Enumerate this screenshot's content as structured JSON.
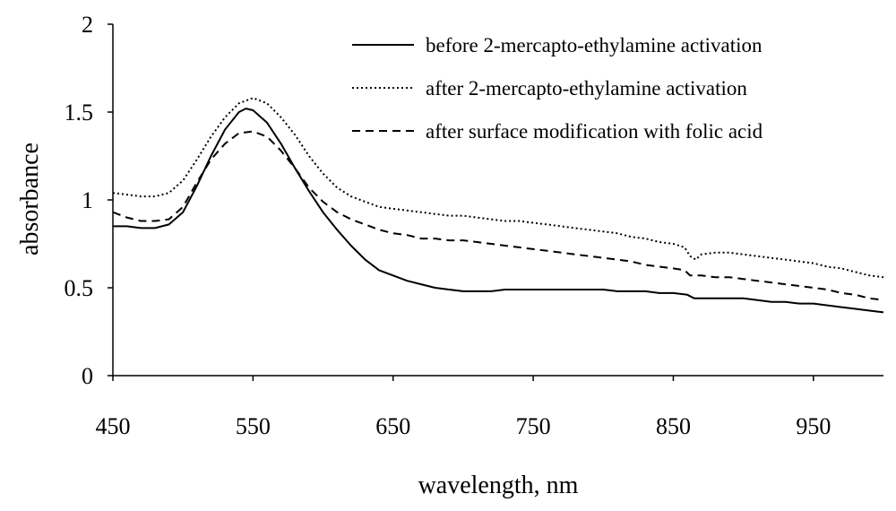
{
  "chart_data": {
    "type": "line",
    "title": "",
    "xlabel": "wavelength, nm",
    "ylabel": "absorbance",
    "xlim": [
      450,
      1000
    ],
    "ylim": [
      0,
      2
    ],
    "xticks": [
      450,
      550,
      650,
      750,
      850,
      950
    ],
    "yticks": [
      0,
      0.5,
      1,
      1.5,
      2
    ],
    "ytick_labels": [
      "0",
      "0.5",
      "1",
      "1.5",
      "2"
    ],
    "grid": false,
    "legend_position": "top-right",
    "series": [
      {
        "name": "before 2-mercapto-ethylamine activation",
        "style": "solid",
        "x": [
          450,
          460,
          470,
          480,
          490,
          500,
          510,
          520,
          530,
          540,
          545,
          550,
          560,
          570,
          580,
          590,
          600,
          610,
          620,
          630,
          640,
          650,
          660,
          670,
          680,
          690,
          700,
          710,
          720,
          730,
          740,
          750,
          760,
          770,
          780,
          790,
          800,
          810,
          820,
          830,
          840,
          850,
          860,
          865,
          870,
          880,
          890,
          900,
          910,
          920,
          930,
          940,
          950,
          960,
          970,
          980,
          990,
          1000
        ],
        "values": [
          0.85,
          0.85,
          0.84,
          0.84,
          0.86,
          0.93,
          1.08,
          1.25,
          1.4,
          1.5,
          1.52,
          1.51,
          1.44,
          1.32,
          1.18,
          1.05,
          0.93,
          0.83,
          0.74,
          0.66,
          0.6,
          0.57,
          0.54,
          0.52,
          0.5,
          0.49,
          0.48,
          0.48,
          0.48,
          0.49,
          0.49,
          0.49,
          0.49,
          0.49,
          0.49,
          0.49,
          0.49,
          0.48,
          0.48,
          0.48,
          0.47,
          0.47,
          0.46,
          0.44,
          0.44,
          0.44,
          0.44,
          0.44,
          0.43,
          0.42,
          0.42,
          0.41,
          0.41,
          0.4,
          0.39,
          0.38,
          0.37,
          0.36
        ]
      },
      {
        "name": "after 2-mercapto-ethylamine activation",
        "style": "dotted",
        "x": [
          450,
          460,
          470,
          480,
          490,
          500,
          510,
          520,
          530,
          540,
          550,
          560,
          570,
          580,
          590,
          600,
          610,
          620,
          630,
          640,
          650,
          660,
          670,
          680,
          690,
          700,
          710,
          720,
          730,
          740,
          750,
          760,
          770,
          780,
          790,
          800,
          810,
          820,
          830,
          840,
          850,
          858,
          862,
          866,
          870,
          880,
          890,
          900,
          910,
          920,
          930,
          940,
          950,
          960,
          970,
          980,
          990,
          1000
        ],
        "values": [
          1.04,
          1.03,
          1.02,
          1.02,
          1.04,
          1.11,
          1.23,
          1.36,
          1.47,
          1.55,
          1.58,
          1.55,
          1.47,
          1.37,
          1.25,
          1.15,
          1.07,
          1.02,
          0.99,
          0.96,
          0.95,
          0.94,
          0.93,
          0.92,
          0.91,
          0.91,
          0.9,
          0.89,
          0.88,
          0.88,
          0.87,
          0.86,
          0.85,
          0.84,
          0.83,
          0.82,
          0.81,
          0.79,
          0.78,
          0.76,
          0.75,
          0.73,
          0.68,
          0.66,
          0.69,
          0.7,
          0.7,
          0.69,
          0.68,
          0.67,
          0.66,
          0.65,
          0.64,
          0.62,
          0.61,
          0.59,
          0.57,
          0.56
        ]
      },
      {
        "name": "after surface modification with folic acid",
        "style": "dashed",
        "x": [
          450,
          460,
          470,
          480,
          490,
          500,
          510,
          520,
          530,
          540,
          550,
          560,
          570,
          580,
          590,
          600,
          610,
          620,
          630,
          640,
          650,
          660,
          670,
          680,
          690,
          700,
          710,
          720,
          730,
          740,
          750,
          760,
          770,
          780,
          790,
          800,
          810,
          820,
          830,
          840,
          850,
          858,
          862,
          870,
          880,
          890,
          900,
          910,
          920,
          930,
          940,
          950,
          960,
          970,
          980,
          990,
          1000
        ],
        "values": [
          0.93,
          0.9,
          0.88,
          0.88,
          0.89,
          0.96,
          1.1,
          1.23,
          1.32,
          1.38,
          1.39,
          1.36,
          1.28,
          1.18,
          1.07,
          0.99,
          0.93,
          0.89,
          0.86,
          0.83,
          0.81,
          0.8,
          0.78,
          0.78,
          0.77,
          0.77,
          0.76,
          0.75,
          0.74,
          0.73,
          0.72,
          0.71,
          0.7,
          0.69,
          0.68,
          0.67,
          0.66,
          0.65,
          0.63,
          0.62,
          0.61,
          0.6,
          0.57,
          0.57,
          0.56,
          0.56,
          0.55,
          0.54,
          0.53,
          0.52,
          0.51,
          0.5,
          0.49,
          0.47,
          0.46,
          0.44,
          0.43
        ]
      }
    ]
  }
}
